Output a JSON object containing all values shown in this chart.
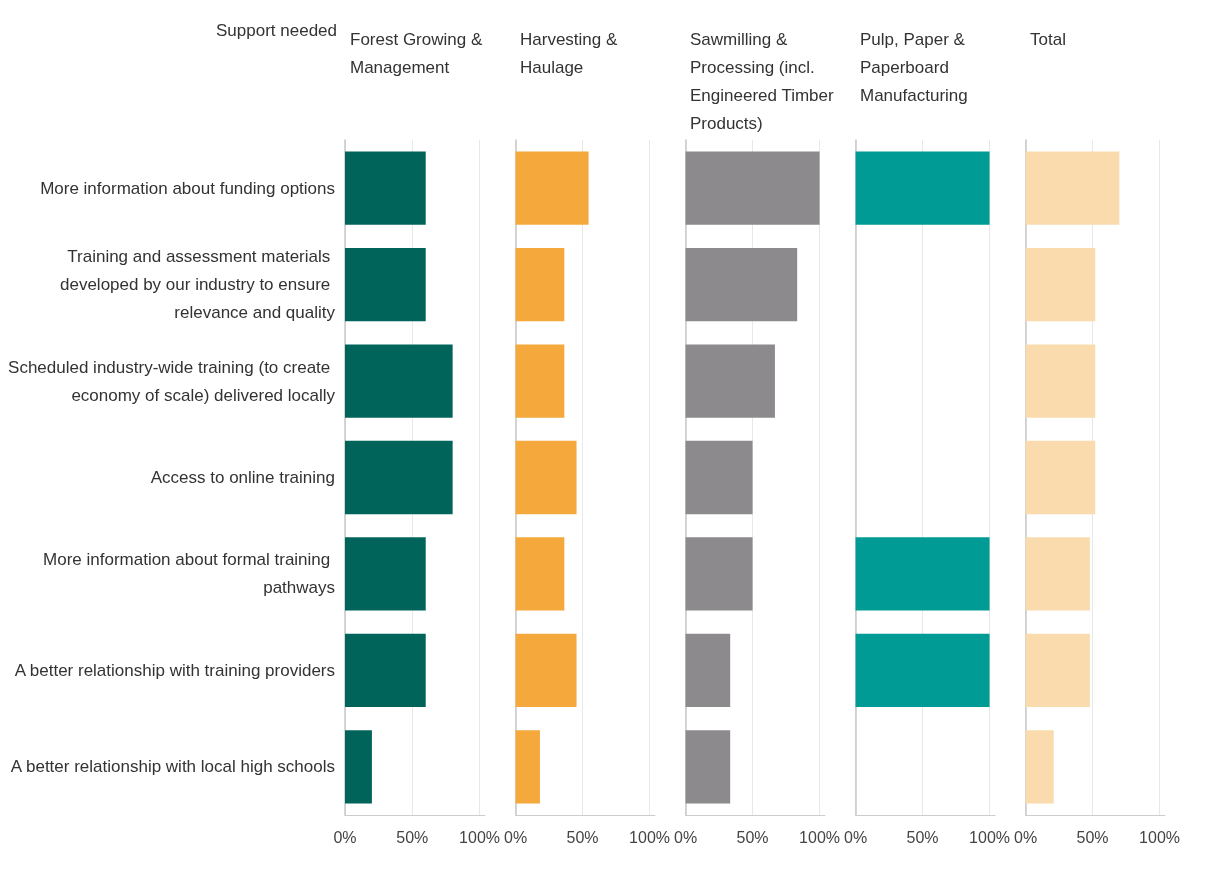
{
  "chart_data": [
    {
      "type": "bar",
      "orientation": "horizontal",
      "title": "Forest Growing & Management",
      "ylabel": "Support needed",
      "categories": [
        "More information about funding options",
        "Training and assessment materials developed by our industry to ensure relevance and quality",
        "Scheduled industry-wide training (to create economy of scale) delivered locally",
        "Access to online training",
        "More information about formal training pathways",
        "A better relationship with training providers",
        "A better relationship with local high schools"
      ],
      "series": [
        {
          "color": "#00645a",
          "values": [
            60,
            60,
            80,
            80,
            60,
            60,
            20
          ]
        }
      ],
      "xlim": [
        0,
        104
      ],
      "xticks": [
        {
          "value": 0,
          "label": "0%"
        },
        {
          "value": 50,
          "label": "50%"
        },
        {
          "value": 100,
          "label": "100%"
        }
      ],
      "grid": "x"
    },
    {
      "type": "bar",
      "orientation": "horizontal",
      "title": "Harvesting & Haulage",
      "tick_labels": "x",
      "categories": [
        null,
        null,
        null,
        null,
        null,
        null,
        null
      ],
      "series": [
        {
          "color": "#f5a83b",
          "values": [
            54.5,
            36.4,
            36.4,
            45.5,
            36.4,
            45.5,
            18.2
          ]
        }
      ],
      "xlim": [
        0,
        104
      ],
      "xticks": [
        {
          "value": 0,
          "label": "0%"
        },
        {
          "value": 50,
          "label": "50%"
        },
        {
          "value": 100,
          "label": "100%"
        }
      ],
      "grid": "x"
    },
    {
      "type": "bar",
      "orientation": "horizontal",
      "title": "Sawmilling & Processing (incl. Engineered Timber Products)",
      "tick_labels": "x",
      "categories": [
        null,
        null,
        null,
        null,
        null,
        null,
        null
      ],
      "series": [
        {
          "color": "#8c8a8c",
          "values": [
            100,
            83.3,
            66.7,
            50,
            50,
            33.3,
            33.3
          ]
        }
      ],
      "xlim": [
        0,
        104
      ],
      "xticks": [
        {
          "value": 0,
          "label": "0%"
        },
        {
          "value": 50,
          "label": "50%"
        },
        {
          "value": 100,
          "label": "100%"
        }
      ],
      "grid": "x"
    },
    {
      "type": "bar",
      "orientation": "horizontal",
      "title": "Pulp, Paper & Paperboard Manufacturing",
      "tick_labels": "x",
      "categories": [
        null,
        null,
        null,
        null,
        null,
        null,
        null
      ],
      "series": [
        {
          "color": "#009b94",
          "values": [
            100,
            0,
            0,
            0,
            100,
            100,
            0
          ]
        }
      ],
      "xlim": [
        0,
        104
      ],
      "xticks": [
        {
          "value": 0,
          "label": "0%"
        },
        {
          "value": 50,
          "label": "50%"
        },
        {
          "value": 100,
          "label": "100%"
        }
      ],
      "grid": "x"
    },
    {
      "type": "bar",
      "orientation": "horizontal",
      "title": "Total",
      "tick_labels": "x",
      "categories": [
        null,
        null,
        null,
        null,
        null,
        null,
        null
      ],
      "series": [
        {
          "color": "#f9dbad",
          "values": [
            70,
            52,
            52,
            52,
            48,
            48,
            21
          ]
        }
      ],
      "xlim": [
        0,
        104
      ],
      "xticks": [
        {
          "value": 0,
          "label": "0%"
        },
        {
          "value": 50,
          "label": "50%"
        },
        {
          "value": 100,
          "label": "100%"
        }
      ],
      "grid": "x"
    }
  ]
}
